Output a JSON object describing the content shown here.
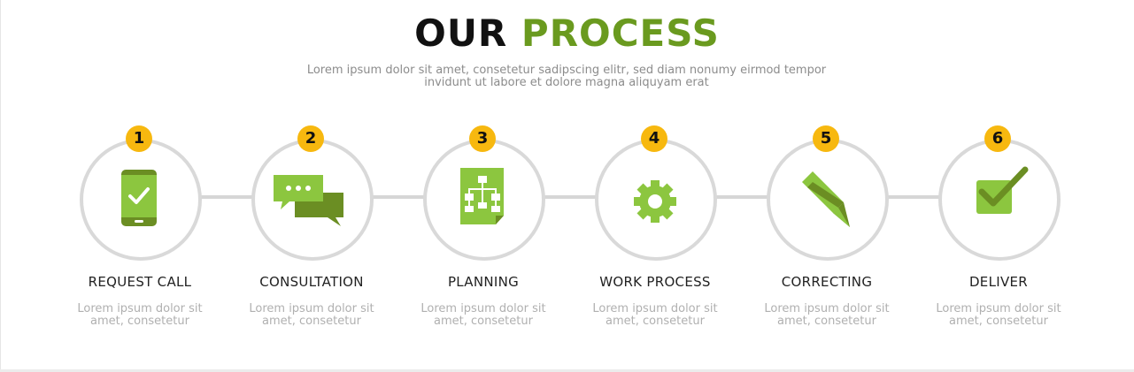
{
  "header": {
    "title_part1": "OUR",
    "title_part2": "PROCESS",
    "subtitle": "Lorem ipsum dolor sit amet, consetetur sadipscing elitr, sed diam nonumy eirmod tempor invidunt ut labore et dolore magna aliquyam erat"
  },
  "steps": [
    {
      "number": "1",
      "title": "REQUEST CALL",
      "description": "Lorem ipsum dolor sit amet, consetetur",
      "icon": "smartphone-check-icon"
    },
    {
      "number": "2",
      "title": "CONSULTATION",
      "description": "Lorem ipsum dolor sit amet, consetetur",
      "icon": "chat-bubbles-icon"
    },
    {
      "number": "3",
      "title": "PLANNING",
      "description": "Lorem ipsum dolor sit amet, consetetur",
      "icon": "sitemap-document-icon"
    },
    {
      "number": "4",
      "title": "WORK PROCESS",
      "description": "Lorem ipsum dolor sit amet, consetetur",
      "icon": "gear-icon"
    },
    {
      "number": "5",
      "title": "CORRECTING",
      "description": "Lorem ipsum dolor sit amet, consetetur",
      "icon": "pencil-icon"
    },
    {
      "number": "6",
      "title": "DELIVER",
      "description": "Lorem ipsum dolor sit amet, consetetur",
      "icon": "checkbox-check-icon"
    }
  ],
  "colors": {
    "accent_green": "#6a9a1f",
    "icon_light_green": "#8cc63f",
    "icon_dark_green": "#6b8e23",
    "badge_yellow": "#f7b80f",
    "circle_border": "#d9d9d9"
  }
}
